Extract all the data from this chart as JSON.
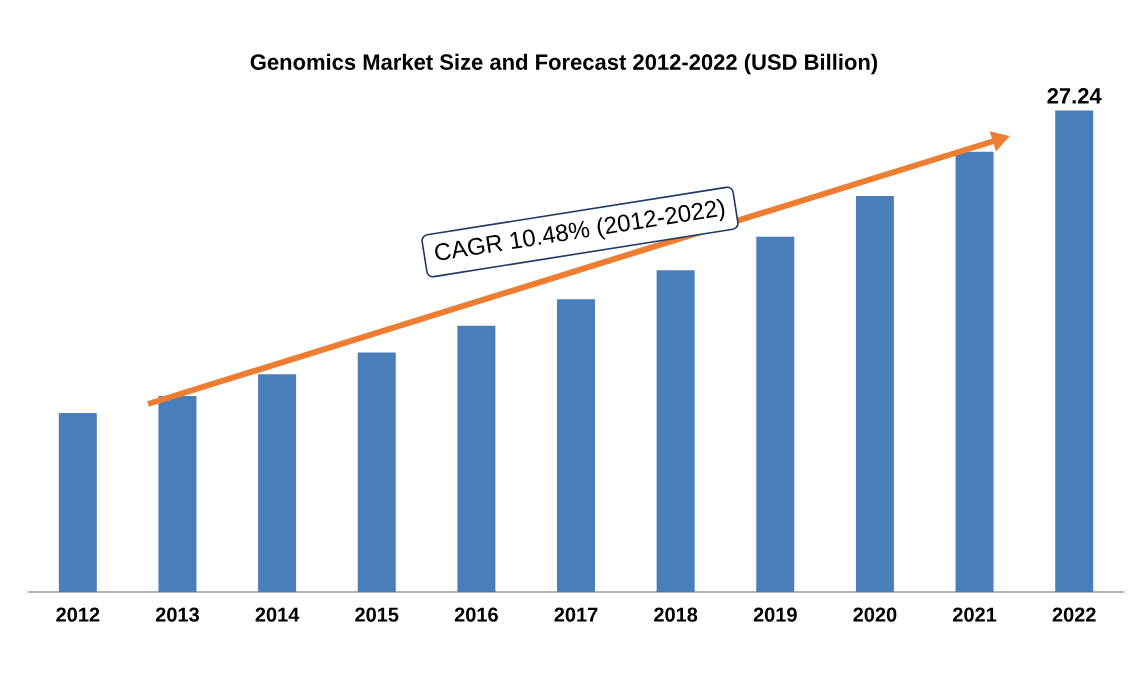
{
  "chart_data": {
    "type": "bar",
    "title": "Genomics Market Size and Forecast 2012-2022 (USD Billion)",
    "categories": [
      "2012",
      "2013",
      "2014",
      "2015",
      "2016",
      "2017",
      "2018",
      "2019",
      "2020",
      "2021",
      "2022"
    ],
    "values": [
      10.13,
      11.09,
      12.32,
      13.55,
      15.06,
      16.56,
      18.2,
      20.1,
      22.4,
      24.9,
      27.24
    ],
    "value_labels": [
      null,
      null,
      null,
      null,
      null,
      null,
      null,
      null,
      null,
      null,
      "27.24"
    ],
    "color": "#4a7ebb",
    "annotations": [
      "CAGR 10.48% (2012-2022)"
    ],
    "tick_labels": "x"
  }
}
